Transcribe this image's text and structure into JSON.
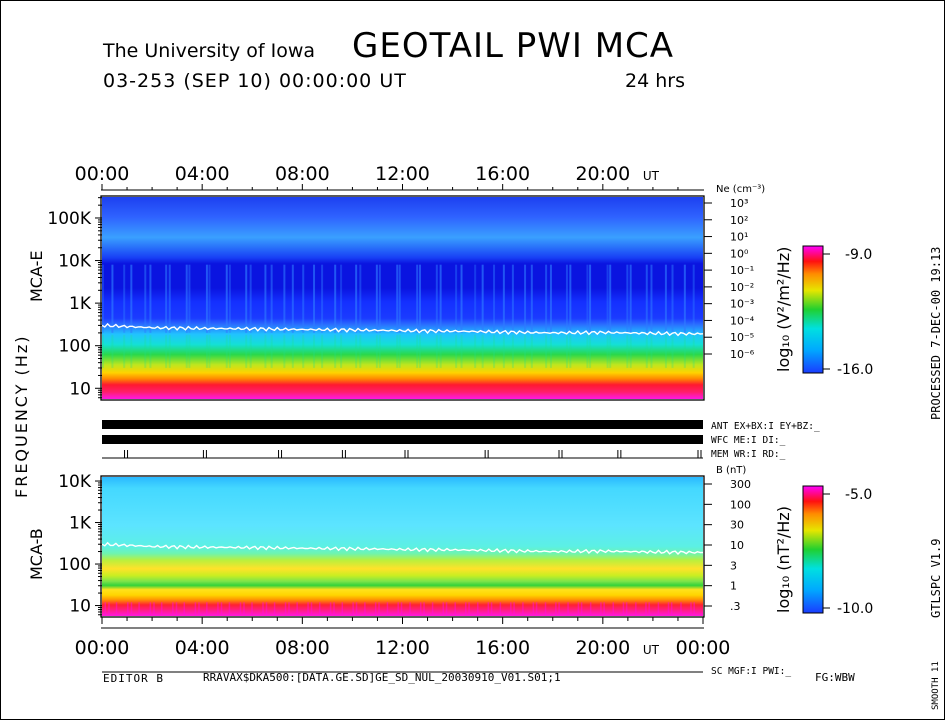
{
  "header": {
    "institution": "The University of Iowa",
    "title": "GEOTAIL  PWI  MCA",
    "date_line": "03-253 (SEP 10) 00:00:00 UT",
    "span": "24 hrs"
  },
  "chart_data": [
    {
      "type": "heatmap",
      "panel": "MCA-E",
      "xlabel": "UT",
      "x_ticks": [
        "00:00",
        "04:00",
        "08:00",
        "12:00",
        "16:00",
        "20:00"
      ],
      "xlim_hours": [
        0,
        24
      ],
      "ylabel": "FREQUENCY (Hz)",
      "y_ticks": [
        "10",
        "100",
        "1K",
        "10K",
        "100K"
      ],
      "ylim_hz": [
        5.6,
        311000
      ],
      "y_scale": "log",
      "right_axis_label": "Ne (cm⁻³)",
      "right_axis_ticks": [
        "10³",
        "10²",
        "10¹",
        "10⁰",
        "10⁻¹",
        "10⁻²",
        "10⁻³",
        "10⁻⁴",
        "10⁻⁵",
        "10⁻⁶"
      ],
      "colorbar_label": "log₁₀ (V²/m²/Hz)",
      "colorbar_range": [
        -16.0,
        -9.0
      ],
      "colorbar_labels": [
        "-9.0",
        "-16.0"
      ],
      "overlay_line": {
        "hours": [
          0,
          2,
          4,
          6,
          8,
          10,
          12,
          14,
          16,
          18,
          20,
          22,
          24
        ],
        "freq_hz": [
          300,
          265,
          255,
          250,
          240,
          235,
          225,
          220,
          210,
          200,
          205,
          195,
          190
        ]
      }
    },
    {
      "type": "heatmap",
      "panel": "MCA-B",
      "x_ticks": [
        "00:00",
        "04:00",
        "08:00",
        "12:00",
        "16:00",
        "20:00",
        "00:00"
      ],
      "xlim_hours": [
        0,
        24
      ],
      "y_ticks": [
        "10",
        "100",
        "1K",
        "10K"
      ],
      "ylim_hz": [
        5.6,
        12500
      ],
      "y_scale": "log",
      "right_axis_label": "B (nT)",
      "right_axis_ticks": [
        "300",
        "100",
        "30",
        "10",
        "3",
        "1",
        ".3"
      ],
      "colorbar_label": "log₁₀ (nT²/Hz)",
      "colorbar_range": [
        -10.0,
        -5.0
      ],
      "colorbar_labels": [
        "-5.0",
        "-10.0"
      ],
      "overlay_line": {
        "hours": [
          0,
          2,
          4,
          6,
          8,
          10,
          12,
          14,
          16,
          18,
          20,
          22,
          24
        ],
        "freq_hz": [
          300,
          265,
          255,
          250,
          240,
          235,
          225,
          220,
          210,
          200,
          205,
          195,
          190
        ]
      }
    }
  ],
  "status_rows": {
    "ant": "ANT EX+BX:I  EY+BZ:_",
    "wfc": "WFC ME:I      DI:_",
    "mem": "MEM WR:I      RD:_",
    "sc": "SC MGF:I     PWI:_"
  },
  "labels": {
    "mca_e": "MCA-E",
    "frequency": "FREQUENCY (Hz)",
    "mca_b": "MCA-B",
    "ut": "UT"
  },
  "side_text": {
    "processed": "PROCESSED   7-DEC-00  19:13",
    "gtlspc": "GTLSPC    V1.9",
    "smooth": "SMOOTH 11"
  },
  "footer": {
    "editor": "EDITOR B",
    "path": "RRAVAX$DKA500:[DATA.GE.SD]GE_SD_NUL_20030910_V01.S01;1",
    "fg": "FG:WBW"
  },
  "colors": {
    "spectrogram_background": "#0f2fe6",
    "colorbar_top": "#ff00ff",
    "colorbar_bottom": "#1a3cff"
  }
}
